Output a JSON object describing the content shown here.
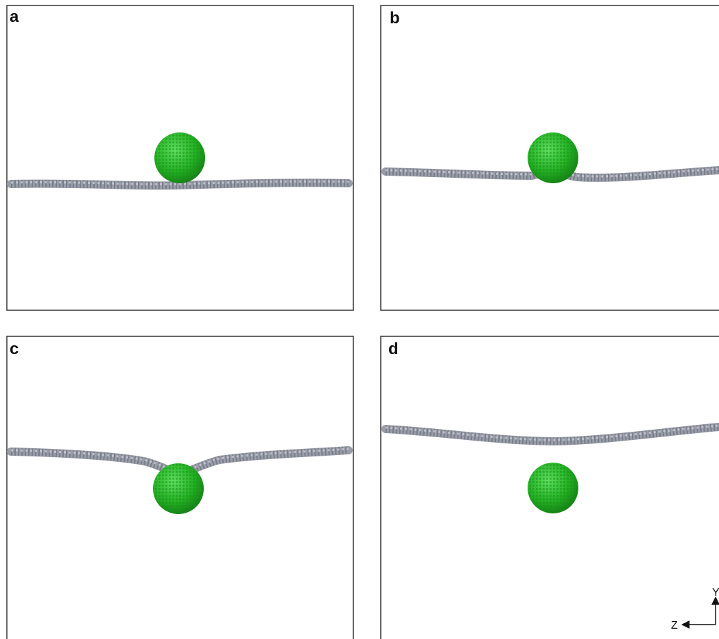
{
  "panels": [
    {
      "label": "a"
    },
    {
      "label": "b"
    },
    {
      "label": "c"
    },
    {
      "label": "d"
    }
  ],
  "axes": {
    "y": "Y",
    "z": "Z"
  }
}
